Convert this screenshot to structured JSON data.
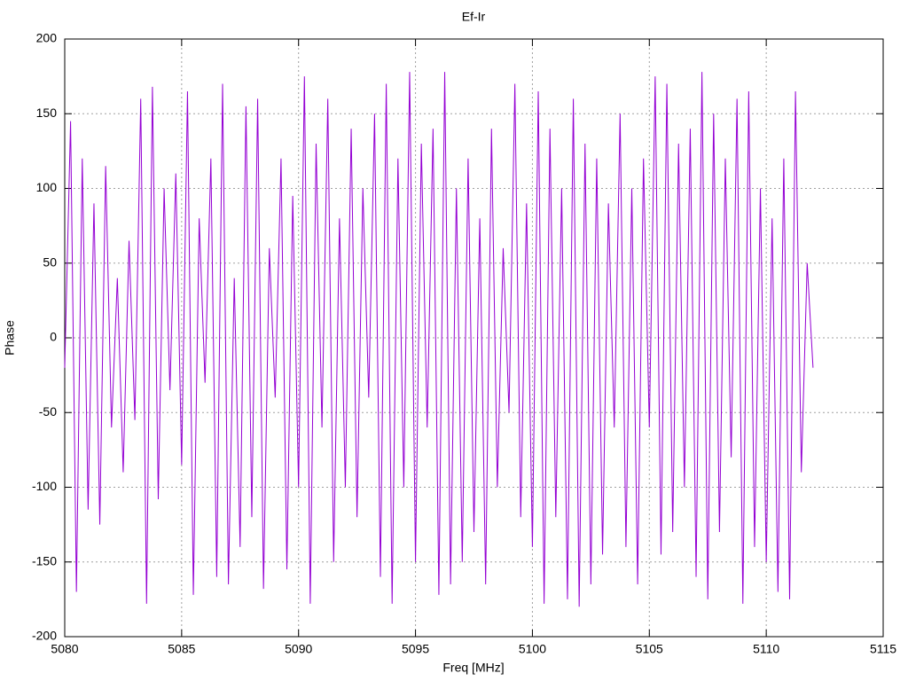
{
  "chart_data": {
    "type": "line",
    "title": "Ef-Ir",
    "x_label": "Freq [MHz]",
    "y_label": "Phase",
    "x": [
      5080,
      5080.25,
      5080.5,
      5080.75,
      5081,
      5081.25,
      5081.5,
      5081.75,
      5082,
      5082.25,
      5082.5,
      5082.75,
      5083,
      5083.25,
      5083.5,
      5083.75,
      5084,
      5084.25,
      5084.5,
      5084.75,
      5085,
      5085.25,
      5085.5,
      5085.75,
      5086,
      5086.25,
      5086.5,
      5086.75,
      5087,
      5087.25,
      5087.5,
      5087.75,
      5088,
      5088.25,
      5088.5,
      5088.75,
      5089,
      5089.25,
      5089.5,
      5089.75,
      5090,
      5090.25,
      5090.5,
      5090.75,
      5091,
      5091.25,
      5091.5,
      5091.75,
      5092,
      5092.25,
      5092.5,
      5092.75,
      5093,
      5093.25,
      5093.5,
      5093.75,
      5094,
      5094.25,
      5094.5,
      5094.75,
      5095,
      5095.25,
      5095.5,
      5095.75,
      5096,
      5096.25,
      5096.5,
      5096.75,
      5097,
      5097.25,
      5097.5,
      5097.75,
      5098,
      5098.25,
      5098.5,
      5098.75,
      5099,
      5099.25,
      5099.5,
      5099.75,
      5100,
      5100.25,
      5100.5,
      5100.75,
      5101,
      5101.25,
      5101.5,
      5101.75,
      5102,
      5102.25,
      5102.5,
      5102.75,
      5103,
      5103.25,
      5103.5,
      5103.75,
      5104,
      5104.25,
      5104.5,
      5104.75,
      5105,
      5105.25,
      5105.5,
      5105.75,
      5106,
      5106.25,
      5106.5,
      5106.75,
      5107,
      5107.25,
      5107.5,
      5107.75,
      5108,
      5108.25,
      5108.5,
      5108.75,
      5109,
      5109.25,
      5109.5,
      5109.75,
      5110,
      5110.25,
      5110.5,
      5110.75,
      5111,
      5111.25,
      5111.5,
      5111.75,
      5112
    ],
    "series": [
      {
        "name": "Ef-Ir",
        "color": "#9400d3",
        "values": [
          -20,
          145,
          -170,
          120,
          -115,
          90,
          -125,
          115,
          -60,
          40,
          -90,
          65,
          -55,
          160,
          -178,
          168,
          -108,
          100,
          -35,
          110,
          -85,
          165,
          -172,
          80,
          -30,
          120,
          -160,
          170,
          -165,
          40,
          -140,
          155,
          -120,
          160,
          -168,
          60,
          -40,
          120,
          -155,
          95,
          -100,
          175,
          -178,
          130,
          -60,
          160,
          -150,
          80,
          -100,
          140,
          -120,
          100,
          -40,
          150,
          -160,
          170,
          -178,
          120,
          -100,
          178,
          -150,
          130,
          -60,
          140,
          -172,
          178,
          -165,
          100,
          -150,
          120,
          -130,
          80,
          -165,
          140,
          -100,
          60,
          -50,
          170,
          -120,
          90,
          -140,
          165,
          -178,
          140,
          -120,
          100,
          -175,
          160,
          -180,
          130,
          -165,
          120,
          -145,
          90,
          -60,
          150,
          -140,
          100,
          -165,
          120,
          -60,
          175,
          -145,
          170,
          -130,
          130,
          -100,
          140,
          -160,
          178,
          -175,
          150,
          -130,
          120,
          -80,
          160,
          -178,
          165,
          -140,
          100,
          -150,
          80,
          -170,
          120,
          -175,
          165,
          -90,
          50,
          -20
        ]
      }
    ],
    "xlim": [
      5080,
      5115
    ],
    "xticks": [
      5080,
      5085,
      5090,
      5095,
      5100,
      5105,
      5110,
      5115
    ],
    "ylim": [
      -200,
      200
    ],
    "yticks": [
      -200,
      -150,
      -100,
      -50,
      0,
      50,
      100,
      150,
      200
    ],
    "grid": true
  }
}
